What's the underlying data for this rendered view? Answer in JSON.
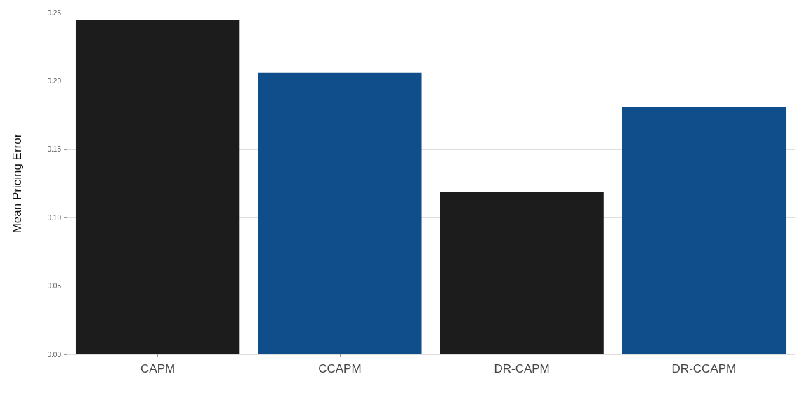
{
  "chart_data": {
    "type": "bar",
    "ylabel": "Mean Pricing Error",
    "categories": [
      "CAPM",
      "CCAPM",
      "DR-CAPM",
      "DR-CCAPM"
    ],
    "values": [
      0.2445,
      0.206,
      0.119,
      0.181
    ],
    "colors": [
      "#1c1c1c",
      "#104e8b",
      "#1c1c1c",
      "#104e8b"
    ],
    "ylim": [
      0,
      0.25
    ],
    "yticks": [
      {
        "value": 0,
        "label": "0.00"
      },
      {
        "value": 0.05,
        "label": "0.05"
      },
      {
        "value": 0.1,
        "label": "0.10"
      },
      {
        "value": 0.15,
        "label": "0.15"
      },
      {
        "value": 0.2,
        "label": "0.20"
      },
      {
        "value": 0.25,
        "label": "0.25"
      }
    ],
    "grid": "y"
  }
}
